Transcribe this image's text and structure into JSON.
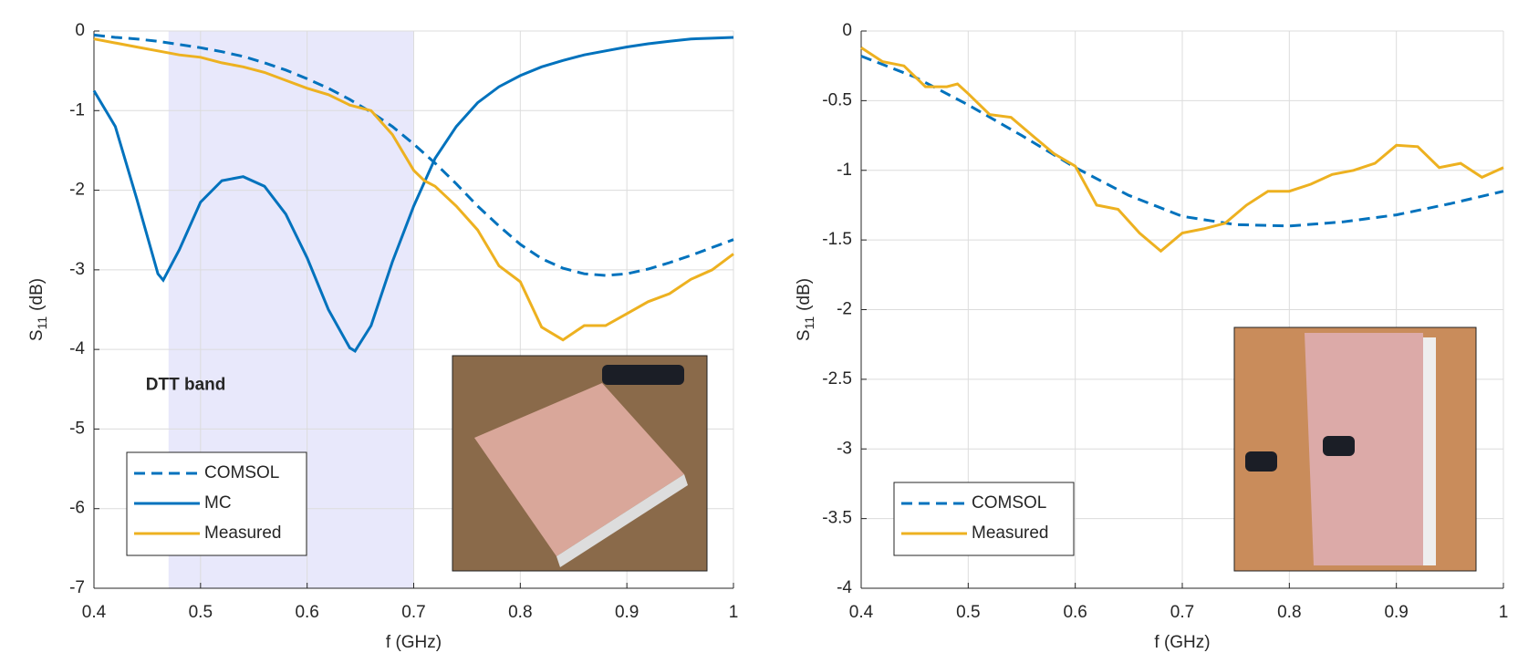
{
  "chart_data": [
    {
      "type": "line",
      "xlabel": "f (GHz)",
      "ylabel": "S",
      "ylabel_sub": "11",
      "ylabel_unit": "(dB)",
      "annotation": "DTT band",
      "band": [
        0.47,
        0.7
      ],
      "band_color": "#e8e8fb",
      "xlim": [
        0.4,
        1
      ],
      "ylim": [
        -7,
        0
      ],
      "xticks": [
        0.4,
        0.5,
        0.6,
        0.7,
        0.8,
        0.9,
        1
      ],
      "yticks": [
        -7,
        -6,
        -5,
        -4,
        -3,
        -2,
        -1,
        0
      ],
      "grid": true,
      "legend": "lower left",
      "series": [
        {
          "name": "COMSOL",
          "color": "#0072BD",
          "dash": true,
          "x": [
            0.4,
            0.42,
            0.44,
            0.46,
            0.48,
            0.5,
            0.52,
            0.54,
            0.56,
            0.58,
            0.6,
            0.62,
            0.64,
            0.66,
            0.68,
            0.7,
            0.72,
            0.74,
            0.76,
            0.78,
            0.8,
            0.82,
            0.84,
            0.86,
            0.88,
            0.9,
            0.92,
            0.94,
            0.96,
            0.98,
            1
          ],
          "values": [
            -0.05,
            -0.08,
            -0.1,
            -0.13,
            -0.17,
            -0.21,
            -0.26,
            -0.32,
            -0.4,
            -0.49,
            -0.6,
            -0.72,
            -0.86,
            -1.02,
            -1.2,
            -1.42,
            -1.66,
            -1.92,
            -2.2,
            -2.45,
            -2.68,
            -2.86,
            -2.98,
            -3.05,
            -3.07,
            -3.05,
            -2.99,
            -2.91,
            -2.82,
            -2.72,
            -2.62
          ]
        },
        {
          "name": "MC",
          "color": "#0072BD",
          "dash": false,
          "x": [
            0.4,
            0.42,
            0.44,
            0.46,
            0.465,
            0.48,
            0.5,
            0.52,
            0.54,
            0.56,
            0.58,
            0.6,
            0.62,
            0.64,
            0.645,
            0.66,
            0.68,
            0.7,
            0.72,
            0.74,
            0.76,
            0.78,
            0.8,
            0.82,
            0.84,
            0.86,
            0.88,
            0.9,
            0.92,
            0.94,
            0.96,
            0.98,
            1
          ],
          "values": [
            -0.75,
            -1.2,
            -2.1,
            -3.05,
            -3.13,
            -2.75,
            -2.15,
            -1.88,
            -1.83,
            -1.95,
            -2.3,
            -2.85,
            -3.5,
            -3.98,
            -4.02,
            -3.7,
            -2.9,
            -2.2,
            -1.6,
            -1.2,
            -0.9,
            -0.7,
            -0.56,
            -0.45,
            -0.37,
            -0.3,
            -0.25,
            -0.2,
            -0.16,
            -0.13,
            -0.1,
            -0.09,
            -0.08
          ]
        },
        {
          "name": "Measured",
          "color": "#EDB120",
          "dash": false,
          "x": [
            0.4,
            0.42,
            0.44,
            0.46,
            0.48,
            0.5,
            0.52,
            0.54,
            0.56,
            0.58,
            0.6,
            0.62,
            0.64,
            0.66,
            0.68,
            0.7,
            0.71,
            0.72,
            0.74,
            0.76,
            0.78,
            0.8,
            0.82,
            0.84,
            0.86,
            0.88,
            0.9,
            0.92,
            0.94,
            0.96,
            0.98,
            1
          ],
          "values": [
            -0.1,
            -0.15,
            -0.2,
            -0.25,
            -0.3,
            -0.33,
            -0.4,
            -0.45,
            -0.52,
            -0.62,
            -0.72,
            -0.8,
            -0.93,
            -1.0,
            -1.3,
            -1.75,
            -1.88,
            -1.95,
            -2.2,
            -2.5,
            -2.95,
            -3.15,
            -3.72,
            -3.88,
            -3.7,
            -3.7,
            -3.55,
            -3.4,
            -3.3,
            -3.12,
            -3.0,
            -2.8
          ]
        }
      ]
    },
    {
      "type": "line",
      "xlabel": "f (GHz)",
      "ylabel": "S",
      "ylabel_sub": "11",
      "ylabel_unit": "(dB)",
      "xlim": [
        0.4,
        1
      ],
      "ylim": [
        -4,
        0
      ],
      "xticks": [
        0.4,
        0.5,
        0.6,
        0.7,
        0.8,
        0.9,
        1
      ],
      "yticks": [
        -4,
        -3.5,
        -3,
        -2.5,
        -2,
        -1.5,
        -1,
        -0.5,
        0
      ],
      "grid": true,
      "legend": "lower left",
      "series": [
        {
          "name": "COMSOL",
          "color": "#0072BD",
          "dash": true,
          "x": [
            0.4,
            0.45,
            0.5,
            0.55,
            0.6,
            0.65,
            0.7,
            0.75,
            0.8,
            0.85,
            0.9,
            0.95,
            1
          ],
          "values": [
            -0.18,
            -0.33,
            -0.53,
            -0.75,
            -0.98,
            -1.18,
            -1.33,
            -1.39,
            -1.4,
            -1.37,
            -1.32,
            -1.24,
            -1.15
          ]
        },
        {
          "name": "Measured",
          "color": "#EDB120",
          "dash": false,
          "x": [
            0.4,
            0.42,
            0.44,
            0.46,
            0.48,
            0.49,
            0.5,
            0.52,
            0.54,
            0.56,
            0.58,
            0.6,
            0.62,
            0.64,
            0.66,
            0.68,
            0.7,
            0.72,
            0.74,
            0.76,
            0.78,
            0.8,
            0.82,
            0.84,
            0.86,
            0.88,
            0.9,
            0.92,
            0.94,
            0.96,
            0.98,
            1
          ],
          "values": [
            -0.12,
            -0.22,
            -0.25,
            -0.4,
            -0.4,
            -0.38,
            -0.45,
            -0.6,
            -0.62,
            -0.75,
            -0.88,
            -0.97,
            -1.25,
            -1.28,
            -1.45,
            -1.58,
            -1.45,
            -1.42,
            -1.38,
            -1.25,
            -1.15,
            -1.15,
            -1.1,
            -1.03,
            -1.0,
            -0.95,
            -0.82,
            -0.83,
            -0.98,
            -0.95,
            -1.05,
            -0.98
          ]
        }
      ]
    }
  ]
}
